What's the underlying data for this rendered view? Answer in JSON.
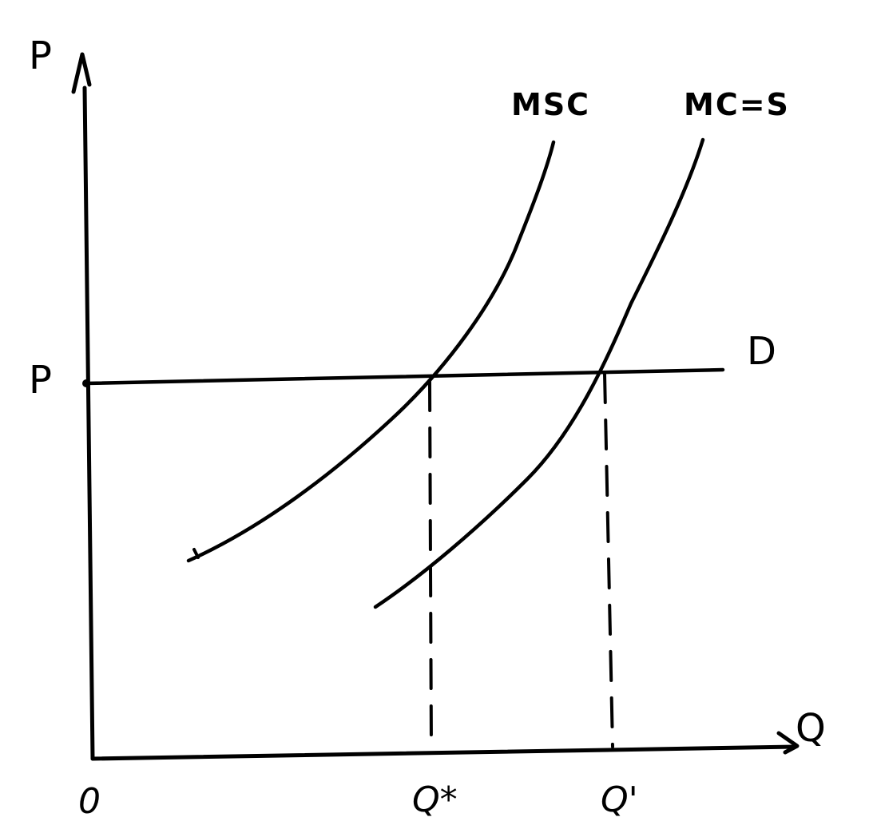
{
  "diagram": {
    "axes": {
      "y_label": "P",
      "x_label": "Q",
      "origin_label": "0"
    },
    "price_tick": "P",
    "quantity_ticks": [
      "Q*",
      "Q'"
    ],
    "curves": {
      "msc": "MSC",
      "supply": "MC=S",
      "demand": "D"
    }
  }
}
